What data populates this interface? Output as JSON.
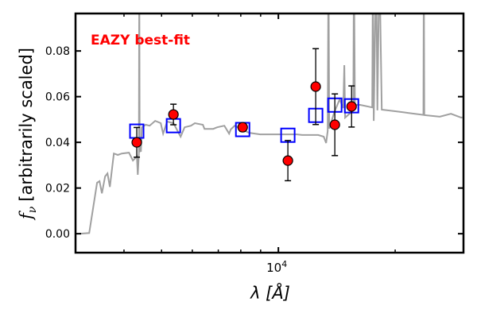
{
  "chart_data": {
    "type": "scatter",
    "annotation": "EAZY best-fit",
    "xlabel": "λ [Å]",
    "ylabel_symbol": "f",
    "ylabel_subscript": "ν",
    "ylabel_text": "[arbitrarily scaled]",
    "xscale": "log",
    "xlim": [
      3000,
      30000
    ],
    "ylim": [
      -0.0083,
      0.0964
    ],
    "x_tick_label": {
      "base": "10",
      "exp": "4",
      "value": 10000
    },
    "x_minor_ticks": [
      4000,
      5000,
      6000,
      7000,
      8000,
      9000,
      20000
    ],
    "y_ticks": [
      0.0,
      0.02,
      0.04,
      0.06,
      0.08
    ],
    "y_tick_labels": [
      "0.00",
      "0.02",
      "0.04",
      "0.06",
      "0.08"
    ],
    "colors": {
      "spectrum": "#a0a0a0",
      "observed": "#ff0000",
      "model": "#0000ff",
      "annotation": "#ff0000"
    },
    "spectrum": [
      [
        3074,
        0
      ],
      [
        3253,
        0.0003
      ],
      [
        3410,
        0.0223
      ],
      [
        3459,
        0.023
      ],
      [
        3509,
        0.0177
      ],
      [
        3576,
        0.0251
      ],
      [
        3627,
        0.0264
      ],
      [
        3679,
        0.0205
      ],
      [
        3766,
        0.0351
      ],
      [
        3856,
        0.0345
      ],
      [
        3948,
        0.0351
      ],
      [
        4119,
        0.0355
      ],
      [
        4217,
        0.032
      ],
      [
        4318,
        0.0338
      ],
      [
        4340,
        0.0258
      ],
      [
        4370,
        0.035
      ],
      [
        4380,
        0.12
      ],
      [
        4390,
        0.036
      ],
      [
        4424,
        0.0362
      ],
      [
        4446,
        0.0466
      ],
      [
        4548,
        0.0477
      ],
      [
        4656,
        0.0473
      ],
      [
        4813,
        0.0494
      ],
      [
        4974,
        0.0484
      ],
      [
        5045,
        0.0438
      ],
      [
        5166,
        0.0491
      ],
      [
        5364,
        0.0484
      ],
      [
        5598,
        0.0425
      ],
      [
        5731,
        0.0466
      ],
      [
        5951,
        0.0473
      ],
      [
        6091,
        0.0484
      ],
      [
        6388,
        0.0477
      ],
      [
        6448,
        0.0459
      ],
      [
        6792,
        0.0459
      ],
      [
        6954,
        0.0466
      ],
      [
        7256,
        0.0473
      ],
      [
        7464,
        0.0438
      ],
      [
        7536,
        0.0456
      ],
      [
        7714,
        0.0473
      ],
      [
        8400,
        0.0442
      ],
      [
        8972,
        0.0435
      ],
      [
        9860,
        0.0435
      ],
      [
        11145,
        0.0435
      ],
      [
        11520,
        0.0432
      ],
      [
        12660,
        0.0432
      ],
      [
        13085,
        0.0425
      ],
      [
        13275,
        0.0397
      ],
      [
        13400,
        0.045
      ],
      [
        13465,
        0.12
      ],
      [
        13520,
        0.046
      ],
      [
        13915,
        0.0529
      ],
      [
        14380,
        0.0588
      ],
      [
        14700,
        0.055
      ],
      [
        14790,
        0.0738
      ],
      [
        14860,
        0.0508
      ],
      [
        15600,
        0.054
      ],
      [
        15655,
        0.12
      ],
      [
        15750,
        0.0564
      ],
      [
        16255,
        0.0564
      ],
      [
        17450,
        0.0553
      ],
      [
        17530,
        0.12
      ],
      [
        17610,
        0.0494
      ],
      [
        17870,
        0.12
      ],
      [
        18000,
        0.054
      ],
      [
        18210,
        0.12
      ],
      [
        18470,
        0.0543
      ],
      [
        20010,
        0.0536
      ],
      [
        21580,
        0.0529
      ],
      [
        23650,
        0.052
      ],
      [
        23710,
        0.12
      ],
      [
        23770,
        0.0519
      ],
      [
        26060,
        0.0512
      ],
      [
        27850,
        0.0525
      ],
      [
        29600,
        0.0508
      ],
      [
        29800,
        0.051
      ]
    ],
    "series": [
      {
        "name": "observed",
        "x": [
          4315,
          5364,
          8090,
          10580,
          12480,
          13980,
          15440
        ],
        "y": [
          0.04,
          0.0522,
          0.0466,
          0.032,
          0.0644,
          0.0477,
          0.0557
        ],
        "yerr": [
          0.0065,
          0.0045,
          0.0018,
          0.0088,
          0.0166,
          0.0135,
          0.009
        ]
      },
      {
        "name": "model",
        "x": [
          4315,
          5364,
          8090,
          10580,
          12480,
          13980,
          15440
        ],
        "y": [
          0.0449,
          0.0473,
          0.0456,
          0.0431,
          0.0518,
          0.0563,
          0.056
        ]
      }
    ]
  }
}
